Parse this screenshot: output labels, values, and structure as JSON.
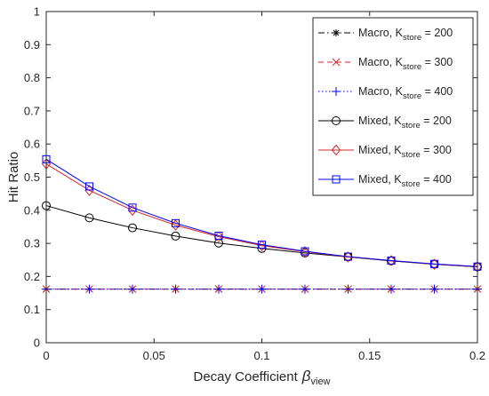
{
  "chart_data": {
    "type": "line",
    "xlabel": "Decay Coefficient",
    "xlabel_symbol": "β",
    "xlabel_subscript": "view",
    "ylabel": "Hit Ratio",
    "xlim": [
      0,
      0.2
    ],
    "ylim": [
      0,
      1
    ],
    "x_ticks": [
      0,
      0.05,
      0.1,
      0.15,
      0.2
    ],
    "x_tick_labels": [
      "0",
      "0.05",
      "0.1",
      "0.15",
      "0.2"
    ],
    "y_ticks": [
      0,
      0.1,
      0.2,
      0.3,
      0.4,
      0.5,
      0.6,
      0.7,
      0.8,
      0.9,
      1
    ],
    "y_tick_labels": [
      "0",
      "0.1",
      "0.2",
      "0.3",
      "0.4",
      "0.5",
      "0.6",
      "0.7",
      "0.8",
      "0.9",
      "1"
    ],
    "grid": false,
    "legend_position": "top-right",
    "x": [
      0,
      0.02,
      0.04,
      0.06,
      0.08,
      0.1,
      0.12,
      0.14,
      0.16,
      0.18,
      0.2
    ],
    "series": [
      {
        "label_prefix": "Macro, K",
        "label_sub": "store",
        "label_suffix": " = 200",
        "color": "#000000",
        "dash": "dashdot",
        "marker": "star",
        "values": [
          0.162,
          0.162,
          0.162,
          0.162,
          0.162,
          0.162,
          0.162,
          0.162,
          0.162,
          0.162,
          0.162
        ]
      },
      {
        "label_prefix": "Macro, K",
        "label_sub": "store",
        "label_suffix": " = 300",
        "color": "#d62728",
        "dash": "dashed",
        "marker": "x",
        "values": [
          0.162,
          0.162,
          0.162,
          0.162,
          0.162,
          0.162,
          0.162,
          0.162,
          0.162,
          0.162,
          0.162
        ]
      },
      {
        "label_prefix": "Macro, K",
        "label_sub": "store",
        "label_suffix": " = 400",
        "color": "#0000ff",
        "dash": "dotted",
        "marker": "plus",
        "values": [
          0.162,
          0.162,
          0.162,
          0.162,
          0.162,
          0.162,
          0.162,
          0.162,
          0.162,
          0.162,
          0.162
        ]
      },
      {
        "label_prefix": "Mixed, K",
        "label_sub": "store",
        "label_suffix": " = 200",
        "color": "#000000",
        "dash": "solid",
        "marker": "circle",
        "values": [
          0.414,
          0.377,
          0.347,
          0.322,
          0.301,
          0.285,
          0.271,
          0.259,
          0.247,
          0.237,
          0.229
        ]
      },
      {
        "label_prefix": "Mixed, K",
        "label_sub": "store",
        "label_suffix": " = 300",
        "color": "#d62728",
        "dash": "solid",
        "marker": "diamond",
        "values": [
          0.54,
          0.46,
          0.4,
          0.355,
          0.32,
          0.293,
          0.275,
          0.259,
          0.248,
          0.237,
          0.229
        ]
      },
      {
        "label_prefix": "Mixed, K",
        "label_sub": "store",
        "label_suffix": " = 400",
        "color": "#0000ff",
        "dash": "solid",
        "marker": "square",
        "values": [
          0.554,
          0.472,
          0.408,
          0.361,
          0.323,
          0.296,
          0.276,
          0.26,
          0.248,
          0.238,
          0.23
        ]
      }
    ]
  }
}
